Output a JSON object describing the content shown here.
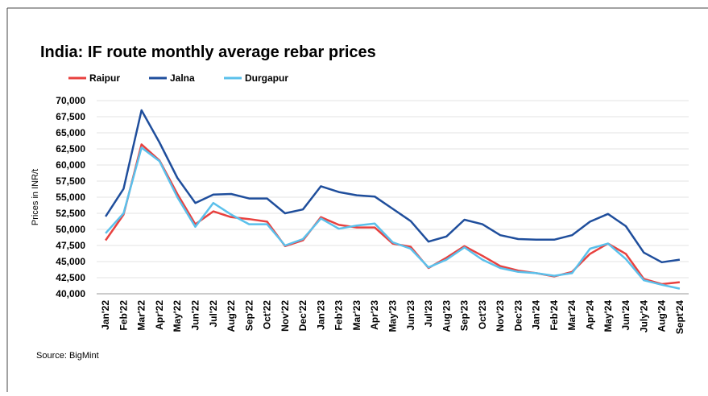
{
  "chart_data": {
    "type": "line",
    "title": "India: IF route monthly average rebar prices",
    "y_label": "Prices in INR/t",
    "source": "Source: BigMint",
    "categories": [
      "Jan'22",
      "Feb'22",
      "Mar'22",
      "Apr'22",
      "May'22",
      "Jun'22",
      "Jul'22",
      "Aug'22",
      "Sep'22",
      "Oct'22",
      "Nov'22",
      "Dec'22",
      "Jan'23",
      "Feb'23",
      "Mar'23",
      "Apr'23",
      "May'23",
      "Jun'23",
      "Jul'23",
      "Aug'23",
      "Sep'23",
      "Oct'23",
      "Nov'23",
      "Dec'23",
      "Jan'24",
      "Feb'24",
      "Mar'24",
      "Apr'24",
      "May'24",
      "Jun'24",
      "July'24",
      "Aug'24",
      "Sept'24"
    ],
    "series": [
      {
        "name": "Raipur",
        "color": "#e8413f",
        "values": [
          48300,
          52300,
          63200,
          60700,
          55500,
          50800,
          52800,
          51900,
          51600,
          51200,
          47400,
          48300,
          51900,
          50700,
          50300,
          50300,
          47800,
          47300,
          44000,
          45600,
          47400,
          45900,
          44300,
          43600,
          43200,
          42700,
          43400,
          46200,
          47800,
          46200,
          42300,
          41500,
          41800
        ]
      },
      {
        "name": "Jalna",
        "color": "#1f4e9c",
        "values": [
          52000,
          56300,
          68500,
          63500,
          58000,
          54100,
          55400,
          55500,
          54800,
          54800,
          52500,
          53100,
          56700,
          55800,
          55300,
          55100,
          53200,
          51300,
          48100,
          48900,
          51500,
          50800,
          49100,
          48500,
          48400,
          48400,
          49100,
          51200,
          52400,
          50500,
          46400,
          44900,
          45300
        ]
      },
      {
        "name": "Durgapur",
        "color": "#5bc0eb",
        "values": [
          49400,
          52500,
          62700,
          60600,
          55000,
          50400,
          54100,
          52300,
          50800,
          50800,
          47500,
          48500,
          51700,
          50100,
          50600,
          50900,
          48000,
          47000,
          44100,
          45300,
          47200,
          45300,
          44000,
          43400,
          43200,
          42800,
          43200,
          47000,
          47800,
          45400,
          42100,
          41400,
          40800
        ]
      }
    ],
    "ylim": [
      40000,
      70000
    ],
    "yticks": [
      {
        "value": 40000,
        "label": "40,000"
      },
      {
        "value": 42500,
        "label": "42,500"
      },
      {
        "value": 45000,
        "label": "45,000"
      },
      {
        "value": 47500,
        "label": "47,500"
      },
      {
        "value": 50000,
        "label": "50,000"
      },
      {
        "value": 52500,
        "label": "52,500"
      },
      {
        "value": 55000,
        "label": "55,000"
      },
      {
        "value": 57500,
        "label": "57,500"
      },
      {
        "value": 60000,
        "label": "60,000"
      },
      {
        "value": 62500,
        "label": "62,500"
      },
      {
        "value": 65000,
        "label": "65,000"
      },
      {
        "value": 67500,
        "label": "67,500"
      },
      {
        "value": 70000,
        "label": "70,000"
      }
    ],
    "grid": true
  }
}
